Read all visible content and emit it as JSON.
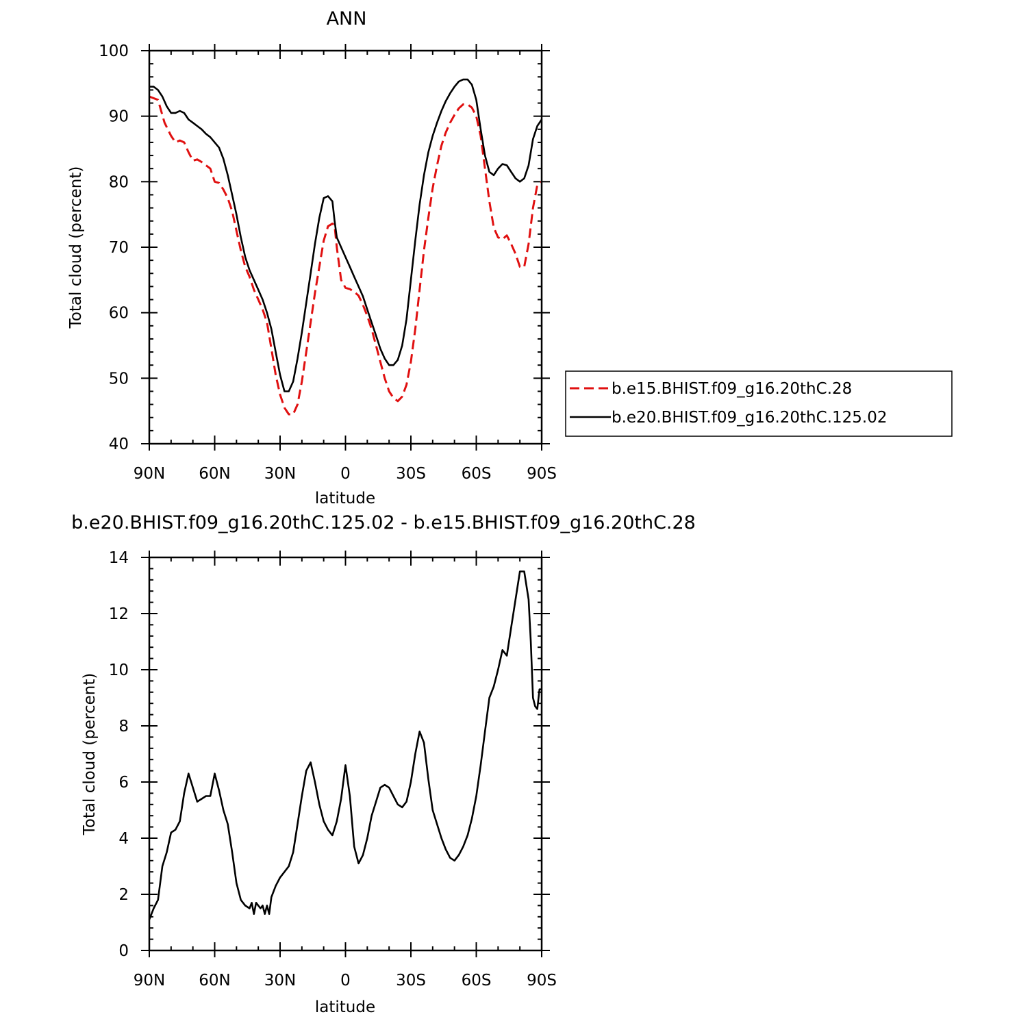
{
  "chart_data": [
    {
      "type": "line",
      "title": "ANN",
      "xlabel": "latitude",
      "ylabel": "Total cloud (percent)",
      "xlim": [
        90,
        -90
      ],
      "ylim": [
        40,
        100
      ],
      "x_ticks": [
        90,
        60,
        30,
        0,
        -30,
        -60,
        -90
      ],
      "x_tick_labels": [
        "90N",
        "60N",
        "30N",
        "0",
        "30S",
        "60S",
        "90S"
      ],
      "y_ticks": [
        40,
        50,
        60,
        70,
        80,
        90,
        100
      ],
      "y_tick_labels": [
        "40",
        "50",
        "60",
        "70",
        "80",
        "90",
        "100"
      ],
      "legend_position": "right",
      "series": [
        {
          "name": "b.e15.BHIST.f09_g16.20thC.28",
          "color": "#e01010",
          "dash": "dashed",
          "x": [
            90,
            86,
            83,
            80,
            78,
            76,
            74,
            72,
            70,
            68,
            66,
            64,
            62,
            60,
            58,
            56,
            54,
            52,
            50,
            48,
            46,
            44,
            42,
            40,
            38,
            36,
            34,
            32,
            30,
            28,
            26,
            24,
            22,
            20,
            18,
            16,
            14,
            12,
            10,
            8,
            6,
            5,
            4,
            2,
            0,
            -2,
            -4,
            -6,
            -8,
            -10,
            -12,
            -14,
            -16,
            -18,
            -20,
            -22,
            -24,
            -26,
            -28,
            -30,
            -32,
            -34,
            -36,
            -38,
            -40,
            -42,
            -44,
            -46,
            -48,
            -50,
            -52,
            -54,
            -56,
            -58,
            -60,
            -62,
            -64,
            -66,
            -68,
            -70,
            -72,
            -74,
            -76,
            -78,
            -80,
            -82,
            -84,
            -86,
            -88,
            -90
          ],
          "y": [
            93.0,
            92.5,
            89.0,
            87.0,
            86.0,
            86.3,
            86.0,
            84.5,
            83.2,
            83.4,
            83.0,
            82.5,
            82.0,
            80.0,
            79.8,
            78.8,
            77.5,
            75.5,
            72.5,
            69.5,
            67.0,
            65.5,
            63.5,
            62.0,
            60.5,
            58.5,
            54.5,
            50.5,
            47.5,
            45.5,
            44.5,
            44.5,
            46.0,
            49.5,
            54.0,
            58.5,
            63.0,
            67.0,
            71.0,
            73.2,
            73.6,
            73.3,
            70.0,
            65.0,
            63.8,
            63.6,
            63.2,
            62.6,
            61.2,
            59.5,
            57.5,
            55.0,
            52.5,
            50.0,
            48.0,
            47.0,
            46.5,
            47.2,
            49.0,
            52.5,
            57.5,
            63.5,
            69.5,
            74.5,
            79.0,
            82.5,
            85.5,
            87.5,
            89.0,
            90.2,
            91.2,
            91.8,
            91.8,
            91.3,
            90.0,
            87.0,
            82.0,
            77.0,
            73.0,
            71.5,
            71.2,
            71.8,
            70.5,
            69.0,
            67.0,
            67.0,
            70.5,
            76.0,
            79.5,
            80.0
          ]
        },
        {
          "name": "b.e20.BHIST.f09_g16.20thC.125.02",
          "color": "#000000",
          "dash": "solid",
          "x": [
            90,
            88,
            86,
            84,
            82,
            80,
            78,
            76,
            74,
            72,
            70,
            68,
            66,
            64,
            62,
            60,
            58,
            56,
            54,
            52,
            50,
            48,
            46,
            44,
            42,
            40,
            38,
            36,
            34,
            32,
            30,
            28,
            26,
            24,
            22,
            20,
            18,
            16,
            14,
            12,
            10,
            8,
            6,
            5,
            4,
            2,
            0,
            -2,
            -4,
            -6,
            -8,
            -10,
            -12,
            -14,
            -16,
            -18,
            -20,
            -22,
            -24,
            -26,
            -28,
            -30,
            -32,
            -34,
            -36,
            -38,
            -40,
            -42,
            -44,
            -46,
            -48,
            -50,
            -52,
            -54,
            -56,
            -58,
            -60,
            -62,
            -64,
            -66,
            -68,
            -70,
            -72,
            -74,
            -76,
            -78,
            -80,
            -82,
            -84,
            -86,
            -88,
            -90
          ],
          "y": [
            94.5,
            94.5,
            94.0,
            93.0,
            91.5,
            90.5,
            90.5,
            90.8,
            90.5,
            89.5,
            89.0,
            88.5,
            88.0,
            87.3,
            86.8,
            86.0,
            85.2,
            83.5,
            81.0,
            78.0,
            75.0,
            71.5,
            68.5,
            66.5,
            65.0,
            63.5,
            62.0,
            60.0,
            57.5,
            54.0,
            50.5,
            48.0,
            48.0,
            49.5,
            53.0,
            57.0,
            61.5,
            66.0,
            70.5,
            74.5,
            77.5,
            77.8,
            77.0,
            74.0,
            71.5,
            70.0,
            68.5,
            67.0,
            65.5,
            64.0,
            62.5,
            60.5,
            58.5,
            56.5,
            54.5,
            53.0,
            52.0,
            52.0,
            52.8,
            55.0,
            59.0,
            65.0,
            71.0,
            76.5,
            81.0,
            84.5,
            87.0,
            89.0,
            90.8,
            92.3,
            93.5,
            94.5,
            95.3,
            95.6,
            95.6,
            94.8,
            92.5,
            88.0,
            84.0,
            81.5,
            81.0,
            82.0,
            82.7,
            82.5,
            81.5,
            80.5,
            80.0,
            80.5,
            82.5,
            86.5,
            88.5,
            89.5
          ]
        }
      ]
    },
    {
      "type": "line",
      "title": "b.e20.BHIST.f09_g16.20thC.125.02 - b.e15.BHIST.f09_g16.20thC.28",
      "xlabel": "latitude",
      "ylabel": "Total cloud (percent)",
      "xlim": [
        90,
        -90
      ],
      "ylim": [
        0,
        14
      ],
      "x_ticks": [
        90,
        60,
        30,
        0,
        -30,
        -60,
        -90
      ],
      "x_tick_labels": [
        "90N",
        "60N",
        "30N",
        "0",
        "30S",
        "60S",
        "90S"
      ],
      "y_ticks": [
        0,
        2,
        4,
        6,
        8,
        10,
        12,
        14
      ],
      "y_tick_labels": [
        "0",
        "2",
        "4",
        "6",
        "8",
        "10",
        "12",
        "14"
      ],
      "series": [
        {
          "color": "#000000",
          "dash": "solid",
          "x": [
            90,
            88,
            86,
            84,
            82,
            80,
            78,
            76,
            74,
            72,
            70,
            68,
            66,
            64,
            62,
            60,
            58,
            56,
            54,
            52,
            50,
            48,
            46,
            44,
            43,
            42,
            41,
            40,
            39,
            38,
            37,
            36,
            35,
            34,
            32,
            30,
            29,
            28,
            26,
            24,
            22,
            20,
            18,
            16,
            14,
            12,
            10,
            8,
            6,
            4,
            2,
            0,
            -2,
            -4,
            -6,
            -8,
            -10,
            -12,
            -14,
            -16,
            -18,
            -20,
            -22,
            -24,
            -26,
            -28,
            -30,
            -32,
            -34,
            -36,
            -38,
            -40,
            -42,
            -44,
            -46,
            -48,
            -50,
            -52,
            -54,
            -56,
            -58,
            -60,
            -62,
            -64,
            -66,
            -68,
            -70,
            -72,
            -74,
            -76,
            -78,
            -80,
            -82,
            -84,
            -85,
            -86,
            -87,
            -88,
            -89,
            -90
          ],
          "y": [
            1.1,
            1.5,
            1.8,
            3.0,
            3.5,
            4.2,
            4.3,
            4.6,
            5.6,
            6.3,
            5.8,
            5.3,
            5.4,
            5.5,
            5.5,
            6.3,
            5.7,
            5.0,
            4.5,
            3.5,
            2.4,
            1.8,
            1.6,
            1.5,
            1.7,
            1.3,
            1.7,
            1.6,
            1.5,
            1.6,
            1.3,
            1.6,
            1.3,
            1.9,
            2.3,
            2.6,
            2.7,
            2.8,
            3.0,
            3.5,
            4.5,
            5.5,
            6.4,
            6.7,
            6.0,
            5.2,
            4.6,
            4.3,
            4.1,
            4.6,
            5.4,
            6.6,
            5.5,
            3.7,
            3.1,
            3.4,
            4.0,
            4.8,
            5.3,
            5.8,
            5.9,
            5.8,
            5.5,
            5.2,
            5.1,
            5.3,
            6.0,
            7.0,
            7.8,
            7.4,
            6.1,
            5.0,
            4.5,
            4.0,
            3.6,
            3.3,
            3.2,
            3.4,
            3.7,
            4.1,
            4.7,
            5.5,
            6.6,
            7.8,
            9.0,
            9.4,
            10.0,
            10.7,
            10.5,
            11.5,
            12.5,
            13.5,
            13.5,
            12.5,
            11.0,
            9.0,
            8.7,
            8.6,
            9.3,
            9.3
          ]
        }
      ]
    }
  ]
}
